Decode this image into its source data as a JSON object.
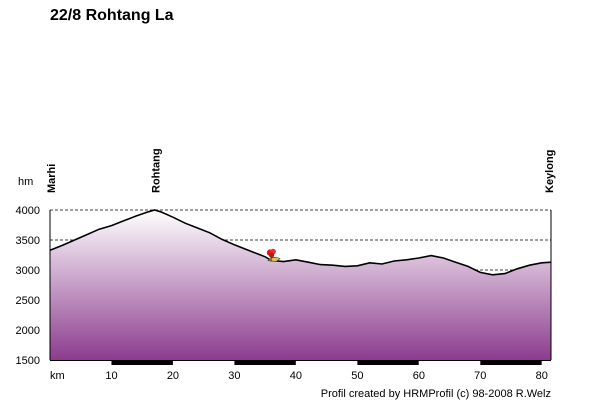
{
  "title": "22/8 Rohtang La",
  "credit": "Profil created by HRMProfil (c) 98-2008 R.Welz",
  "chart_data": {
    "type": "area",
    "title": "22/8 Rohtang La",
    "xlabel": "km",
    "ylabel": "hm",
    "xlim": [
      0,
      81.5
    ],
    "ylim": [
      1500,
      4000
    ],
    "x_ticks": [
      10,
      20,
      30,
      40,
      50,
      60,
      70,
      80
    ],
    "y_ticks": [
      1500,
      2000,
      2500,
      3000,
      3500,
      4000
    ],
    "grid": "horizontal dashed",
    "colors": {
      "fill_top": "#ffffff",
      "fill_bottom": "#8c3c8e",
      "line": "#000000",
      "axis_band": "#000000"
    },
    "places": [
      {
        "name": "Marhi",
        "x": 0
      },
      {
        "name": "Rohtang",
        "x": 17
      },
      {
        "name": "Keylong",
        "x": 81
      }
    ],
    "marker": {
      "icon": "flower-icon",
      "x": 35.8,
      "y": 3290
    },
    "series": [
      {
        "x": [
          0,
          2,
          4,
          6,
          8,
          10,
          12,
          14,
          16,
          17,
          18,
          20,
          22,
          24,
          26,
          28,
          30,
          32,
          34,
          35,
          36,
          38,
          40,
          42,
          44,
          46,
          48,
          50,
          52,
          54,
          56,
          58,
          60,
          62,
          64,
          66,
          68,
          70,
          72,
          74,
          76,
          78,
          80,
          81.5
        ],
        "y": [
          3330,
          3410,
          3500,
          3590,
          3680,
          3740,
          3820,
          3900,
          3970,
          4000,
          3970,
          3880,
          3780,
          3700,
          3620,
          3510,
          3420,
          3340,
          3260,
          3220,
          3160,
          3140,
          3170,
          3130,
          3090,
          3080,
          3060,
          3070,
          3120,
          3100,
          3150,
          3170,
          3200,
          3240,
          3200,
          3130,
          3060,
          2960,
          2920,
          2940,
          3020,
          3080,
          3120,
          3130
        ]
      }
    ]
  }
}
